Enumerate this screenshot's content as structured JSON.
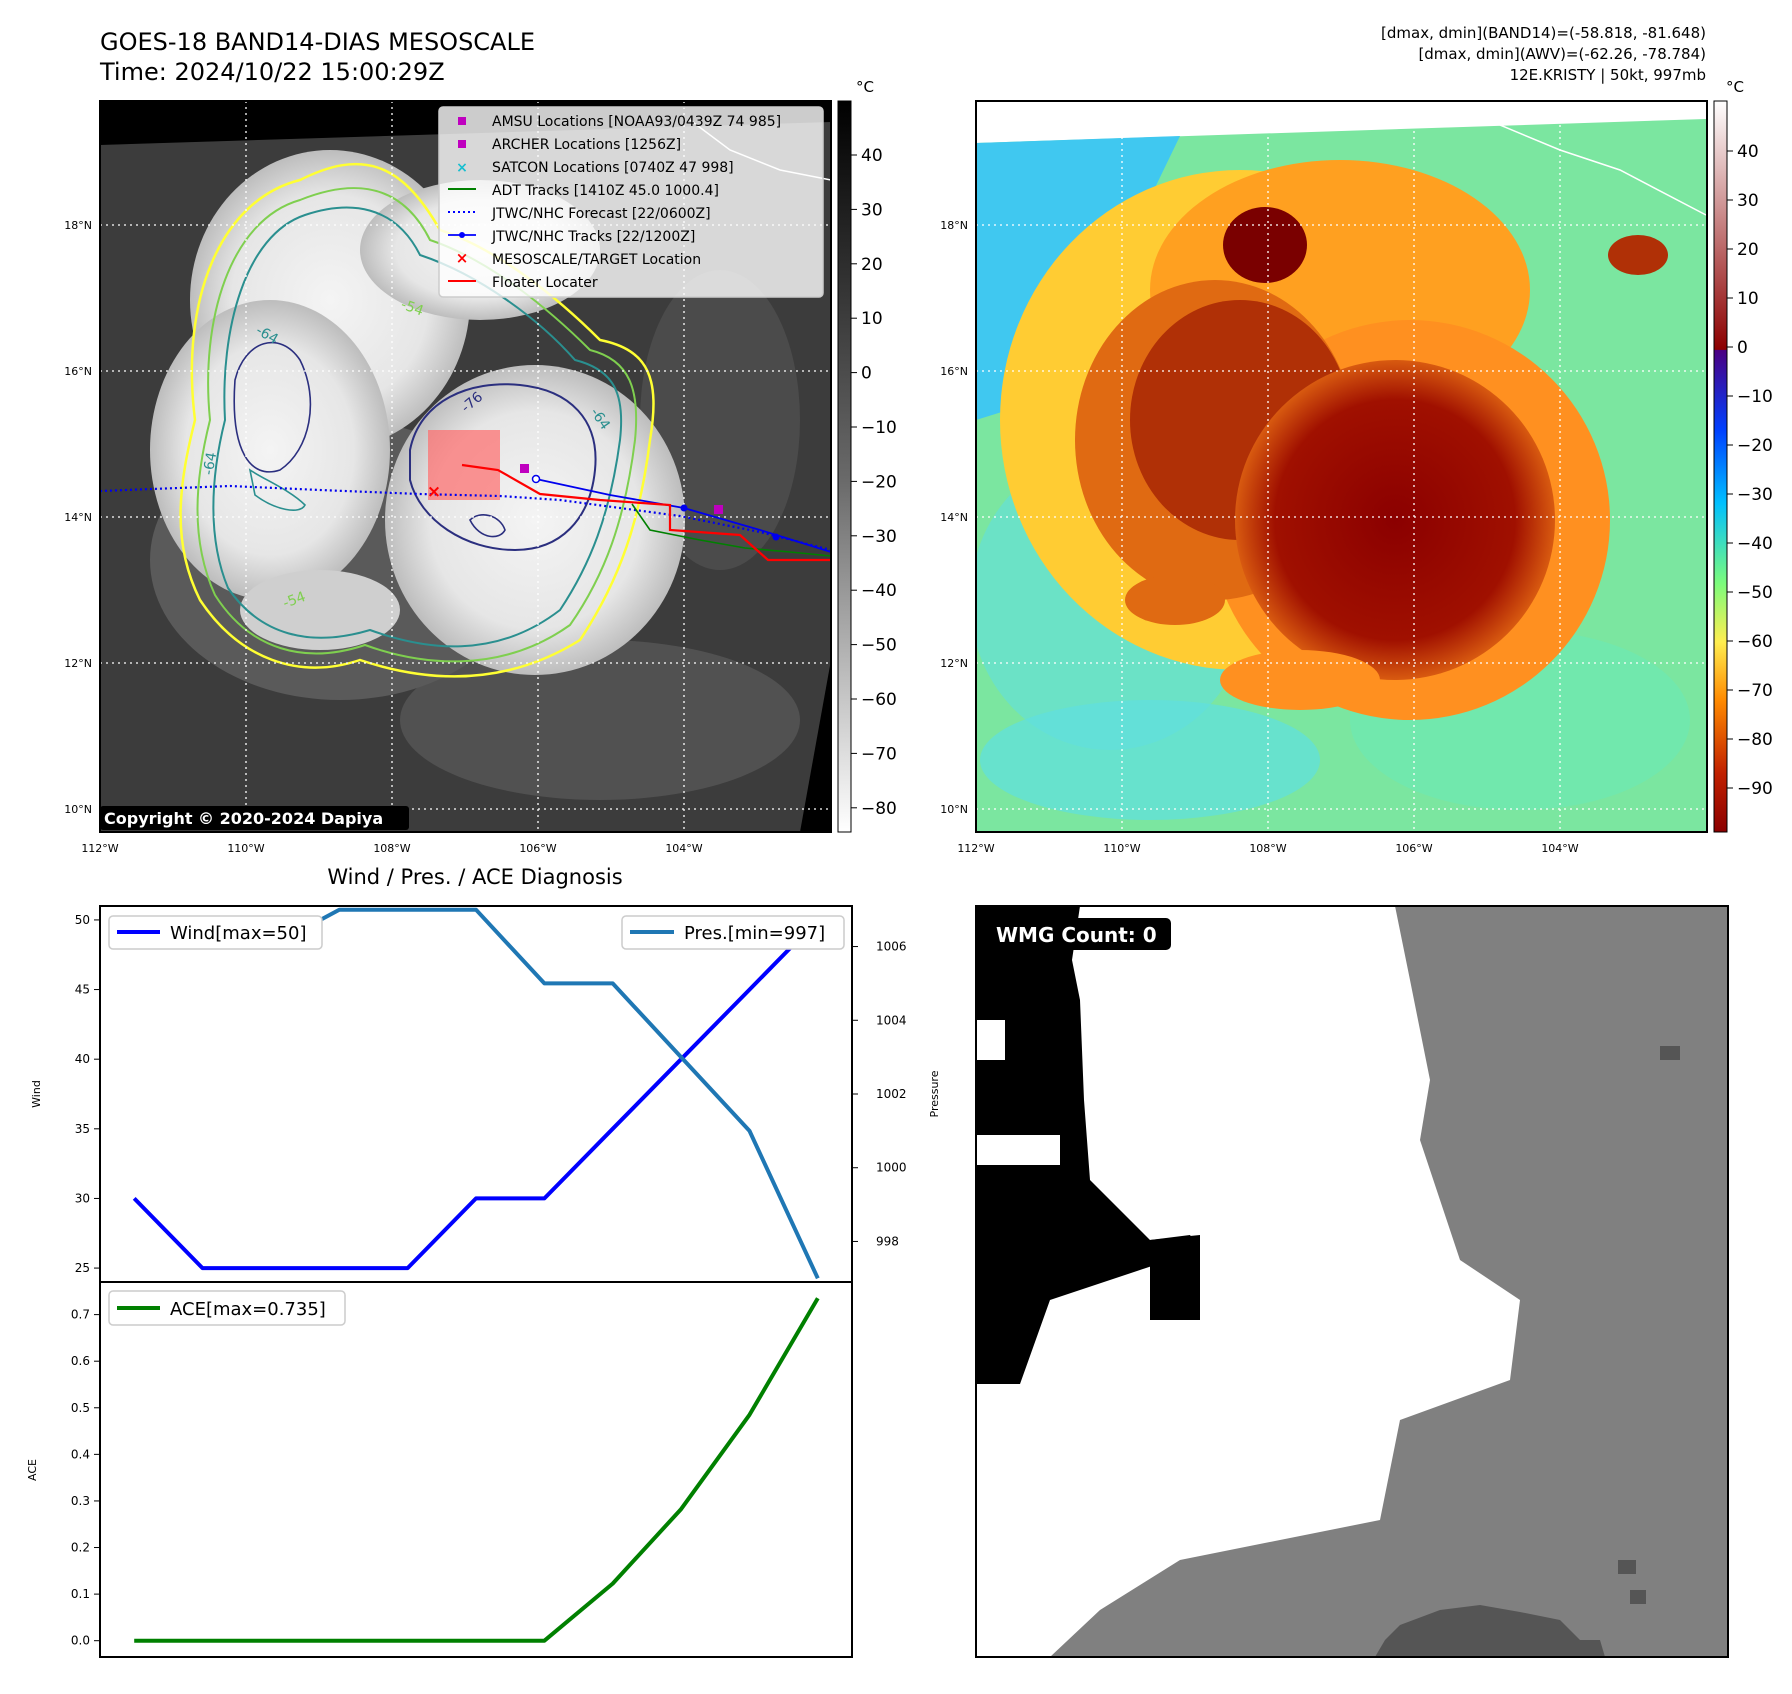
{
  "header": {
    "title_line1": "GOES-18 BAND14-DIAS MESOSCALE",
    "title_line2": "Time: 2024/10/22 15:00:29Z",
    "info_line1": "[dmax, dmin](BAND14)=(-58.818, -81.648)",
    "info_line2": "[dmax, dmin](AWV)=(-62.26, -78.784)",
    "info_line3": "12E.KRISTY | 50kt, 997mb"
  },
  "map": {
    "lat_labels": [
      "18°N",
      "16°N",
      "14°N",
      "12°N",
      "10°N"
    ],
    "lon_labels": [
      "112°W",
      "110°W",
      "108°W",
      "106°W",
      "104°W"
    ],
    "copyright": "Copyright © 2020-2024 Dapiya",
    "contour_labels": [
      "-64",
      "-54",
      "-76",
      "-64",
      "-64",
      "-54"
    ]
  },
  "legend": {
    "items": [
      {
        "label": "AMSU Locations [NOAA93/0439Z 74 985]",
        "color": "#bf00bf"
      },
      {
        "label": "ARCHER Locations [1256Z]",
        "color": "#bf00bf"
      },
      {
        "label": "SATCON Locations [0740Z 47 998]",
        "color": "#17becf"
      },
      {
        "label": "ADT Tracks [1410Z 45.0 1000.4]",
        "color": "#008000"
      },
      {
        "label": "JTWC/NHC Forecast [22/0600Z]",
        "color": "#0000ff"
      },
      {
        "label": "JTWC/NHC Tracks [22/1200Z]",
        "color": "#0000ff"
      },
      {
        "label": "MESOSCALE/TARGET Location",
        "color": "#ff0000"
      },
      {
        "label": "Floater Locater",
        "color": "#ff0000"
      }
    ]
  },
  "colorbar1": {
    "unit": "°C",
    "ticks": [
      "40",
      "30",
      "20",
      "10",
      "0",
      "−10",
      "−20",
      "−30",
      "−40",
      "−50",
      "−60",
      "−70",
      "−80"
    ]
  },
  "colorbar2": {
    "unit": "°C",
    "ticks": [
      "40",
      "30",
      "20",
      "10",
      "0",
      "−10",
      "−20",
      "−30",
      "−40",
      "−50",
      "−60",
      "−70",
      "−80",
      "−90"
    ]
  },
  "wmg": {
    "label": "WMG Count: 0"
  },
  "chart_data": {
    "type": "line",
    "title": "Wind / Pres. / ACE Diagnosis",
    "x": [
      0,
      1,
      2,
      3,
      4,
      5,
      6,
      7,
      8,
      9,
      10
    ],
    "series": [
      {
        "name": "Wind[max=50]",
        "axis": "Wind",
        "color": "#0000ff",
        "values": [
          30,
          25,
          25,
          25,
          25,
          30,
          30,
          35,
          40,
          45,
          50
        ]
      },
      {
        "name": "Pres.[min=997]",
        "axis": "Pressure",
        "color": "#1f77b4",
        "values": [
          1006,
          1006,
          1006,
          1007,
          1007,
          1007,
          1005,
          1005,
          1003,
          1001,
          997
        ]
      },
      {
        "name": "ACE[max=0.735]",
        "axis": "ACE",
        "color": "#008000",
        "values": [
          0,
          0,
          0,
          0,
          0,
          0,
          0,
          0.1225,
          0.2825,
          0.485,
          0.735
        ]
      }
    ],
    "wind_axis": {
      "label": "Wind",
      "ylim": [
        24,
        51
      ],
      "ticks": [
        "25",
        "30",
        "35",
        "40",
        "45",
        "50"
      ]
    },
    "pressure_axis": {
      "label": "Pressure",
      "ylim": [
        996.9,
        1007.1
      ],
      "ticks": [
        "998",
        "1000",
        "1002",
        "1004",
        "1006"
      ]
    },
    "ace_axis": {
      "label": "ACE",
      "ylim": [
        -0.035,
        0.77
      ],
      "ticks": [
        "0.0",
        "0.1",
        "0.2",
        "0.3",
        "0.4",
        "0.5",
        "0.6",
        "0.7"
      ]
    }
  }
}
